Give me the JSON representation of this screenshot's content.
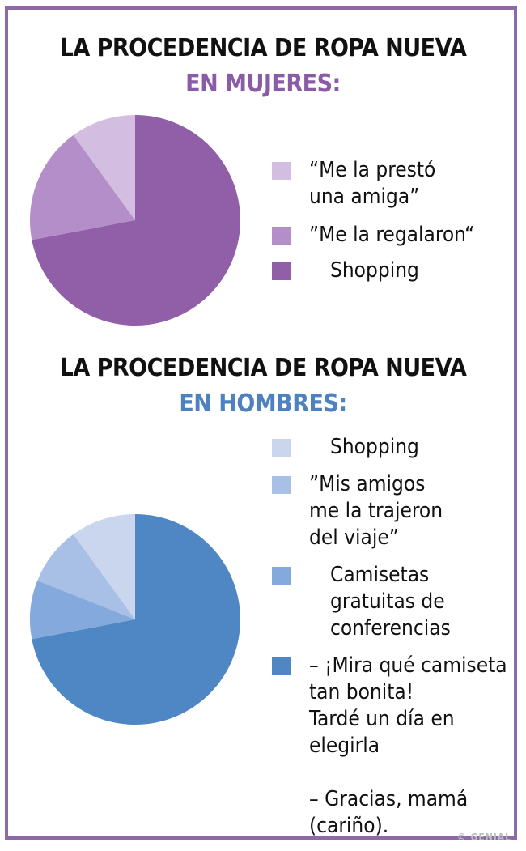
{
  "chart_data": [
    {
      "type": "pie",
      "title": "LA PROCEDENCIA DE ROPA NUEVA",
      "subtitle": "EN MUJERES:",
      "subtitle_color": "#8a5ba7",
      "legend_position": "right",
      "slices": [
        {
          "label": "“Me la prestó\nuna amiga”",
          "value": 10,
          "color": "#d3bde0"
        },
        {
          "label": "”Me la regalaron“",
          "value": 18,
          "color": "#b38ec8"
        },
        {
          "label": "Shopping",
          "value": 72,
          "color": "#915ea8"
        }
      ]
    },
    {
      "type": "pie",
      "title": "LA PROCEDENCIA DE ROPA NUEVA",
      "subtitle": "EN HOMBRES:",
      "subtitle_color": "#4e82be",
      "legend_position": "right",
      "slices": [
        {
          "label": "Shopping",
          "value": 10,
          "color": "#c9d6ee"
        },
        {
          "label": "”Mis amigos\nme la trajeron\ndel viaje”",
          "value": 9,
          "color": "#a8bfe6"
        },
        {
          "label": "Camisetas\ngratuitas de\nconferencias",
          "value": 9,
          "color": "#84a9dc"
        },
        {
          "label": "– ¡Mira qué camiseta\ntan bonita!\nTardé un día en\nelegirla\n\n– Gracias, mamá\n(cariño).",
          "value": 72,
          "color": "#4f86c4"
        }
      ]
    }
  ],
  "watermark": "© GENIAL"
}
